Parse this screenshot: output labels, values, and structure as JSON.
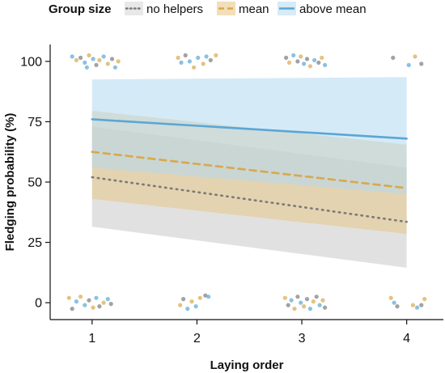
{
  "chart_data": {
    "type": "line",
    "legend": {
      "title": "Group size",
      "placement": "top",
      "entries": [
        {
          "key": "no_helpers",
          "label": "no helpers"
        },
        {
          "key": "mean",
          "label": "mean"
        },
        {
          "key": "above_mean",
          "label": "above mean"
        }
      ]
    },
    "xlabel": "Laying order",
    "ylabel": "Fledging probability (%)",
    "xlim": [
      0.6,
      4.35
    ],
    "ylim": [
      -7,
      107
    ],
    "xticks": [
      1,
      2,
      3,
      4
    ],
    "yticks": [
      0,
      25,
      50,
      75,
      100
    ],
    "grid": false,
    "series": [
      {
        "key": "no_helpers",
        "label": "no helpers",
        "color": "#7a7a7a",
        "band_color": "#c8c8c8",
        "linestyle": "dotted",
        "x": [
          1,
          4
        ],
        "y": [
          52,
          33.5
        ],
        "lower": [
          31.5,
          14.5
        ],
        "upper": [
          73,
          56
        ]
      },
      {
        "key": "mean",
        "label": "mean",
        "color": "#d9a84a",
        "band_color": "#e8c98a",
        "linestyle": "dashed",
        "x": [
          1,
          4
        ],
        "y": [
          62.5,
          47.5
        ],
        "lower": [
          43,
          28.5
        ],
        "upper": [
          79.5,
          65.5
        ]
      },
      {
        "key": "above_mean",
        "label": "above mean",
        "color": "#5aa6d6",
        "band_color": "#b3d9f0",
        "linestyle": "solid",
        "x": [
          1,
          4
        ],
        "y": [
          76,
          68
        ],
        "lower": [
          56,
          45
        ],
        "upper": [
          92.5,
          93.5
        ]
      }
    ],
    "jitter_points": [
      {
        "x": 0.81,
        "y": 102,
        "group": "above_mean"
      },
      {
        "x": 0.85,
        "y": 100.5,
        "group": "mean"
      },
      {
        "x": 0.89,
        "y": 101.5,
        "group": "no_helpers"
      },
      {
        "x": 0.93,
        "y": 99.5,
        "group": "above_mean"
      },
      {
        "x": 0.97,
        "y": 102.5,
        "group": "mean"
      },
      {
        "x": 1.01,
        "y": 101,
        "group": "above_mean"
      },
      {
        "x": 1.04,
        "y": 98.5,
        "group": "no_helpers"
      },
      {
        "x": 1.07,
        "y": 100.5,
        "group": "mean"
      },
      {
        "x": 1.11,
        "y": 102,
        "group": "above_mean"
      },
      {
        "x": 1.15,
        "y": 99,
        "group": "mean"
      },
      {
        "x": 1.19,
        "y": 101,
        "group": "no_helpers"
      },
      {
        "x": 1.22,
        "y": 97.5,
        "group": "above_mean"
      },
      {
        "x": 1.25,
        "y": 100,
        "group": "mean"
      },
      {
        "x": 0.95,
        "y": 97.5,
        "group": "above_mean"
      },
      {
        "x": 1.82,
        "y": 101.5,
        "group": "mean"
      },
      {
        "x": 1.85,
        "y": 99.5,
        "group": "above_mean"
      },
      {
        "x": 1.89,
        "y": 102.5,
        "group": "no_helpers"
      },
      {
        "x": 1.93,
        "y": 100,
        "group": "above_mean"
      },
      {
        "x": 1.97,
        "y": 97.5,
        "group": "mean"
      },
      {
        "x": 2.01,
        "y": 101.5,
        "group": "above_mean"
      },
      {
        "x": 2.06,
        "y": 99,
        "group": "mean"
      },
      {
        "x": 2.09,
        "y": 102,
        "group": "above_mean"
      },
      {
        "x": 2.13,
        "y": 100.5,
        "group": "no_helpers"
      },
      {
        "x": 2.18,
        "y": 102.5,
        "group": "mean"
      },
      {
        "x": 2.85,
        "y": 101.5,
        "group": "no_helpers"
      },
      {
        "x": 2.88,
        "y": 99.5,
        "group": "mean"
      },
      {
        "x": 2.92,
        "y": 102.5,
        "group": "above_mean"
      },
      {
        "x": 2.96,
        "y": 100,
        "group": "no_helpers"
      },
      {
        "x": 2.99,
        "y": 102,
        "group": "mean"
      },
      {
        "x": 3.02,
        "y": 99,
        "group": "above_mean"
      },
      {
        "x": 3.05,
        "y": 101,
        "group": "no_helpers"
      },
      {
        "x": 3.08,
        "y": 98,
        "group": "mean"
      },
      {
        "x": 3.12,
        "y": 100.5,
        "group": "above_mean"
      },
      {
        "x": 3.16,
        "y": 99.5,
        "group": "no_helpers"
      },
      {
        "x": 3.19,
        "y": 101.5,
        "group": "mean"
      },
      {
        "x": 3.22,
        "y": 98.5,
        "group": "above_mean"
      },
      {
        "x": 3.87,
        "y": 101.5,
        "group": "no_helpers"
      },
      {
        "x": 4.02,
        "y": 98.5,
        "group": "above_mean"
      },
      {
        "x": 4.08,
        "y": 102,
        "group": "mean"
      },
      {
        "x": 4.14,
        "y": 99,
        "group": "no_helpers"
      },
      {
        "x": 0.78,
        "y": 2,
        "group": "mean"
      },
      {
        "x": 0.81,
        "y": -2.5,
        "group": "no_helpers"
      },
      {
        "x": 0.85,
        "y": 0.5,
        "group": "above_mean"
      },
      {
        "x": 0.89,
        "y": 2.5,
        "group": "mean"
      },
      {
        "x": 0.93,
        "y": -1,
        "group": "above_mean"
      },
      {
        "x": 0.97,
        "y": 1,
        "group": "no_helpers"
      },
      {
        "x": 1.01,
        "y": -2,
        "group": "mean"
      },
      {
        "x": 1.04,
        "y": 2,
        "group": "above_mean"
      },
      {
        "x": 1.07,
        "y": -1.5,
        "group": "no_helpers"
      },
      {
        "x": 1.11,
        "y": 0,
        "group": "mean"
      },
      {
        "x": 1.15,
        "y": 1.5,
        "group": "above_mean"
      },
      {
        "x": 1.18,
        "y": -0.5,
        "group": "no_helpers"
      },
      {
        "x": 1.84,
        "y": -1,
        "group": "mean"
      },
      {
        "x": 1.87,
        "y": 1.5,
        "group": "no_helpers"
      },
      {
        "x": 1.91,
        "y": -2.5,
        "group": "above_mean"
      },
      {
        "x": 1.95,
        "y": 0.5,
        "group": "mean"
      },
      {
        "x": 1.99,
        "y": -1.5,
        "group": "above_mean"
      },
      {
        "x": 2.03,
        "y": 2,
        "group": "mean"
      },
      {
        "x": 2.08,
        "y": 3,
        "group": "no_helpers"
      },
      {
        "x": 2.11,
        "y": 2.5,
        "group": "above_mean"
      },
      {
        "x": 2.84,
        "y": 2,
        "group": "mean"
      },
      {
        "x": 2.87,
        "y": -1,
        "group": "no_helpers"
      },
      {
        "x": 2.9,
        "y": 1,
        "group": "above_mean"
      },
      {
        "x": 2.93,
        "y": -2.5,
        "group": "mean"
      },
      {
        "x": 2.96,
        "y": 2.5,
        "group": "no_helpers"
      },
      {
        "x": 2.99,
        "y": 0,
        "group": "above_mean"
      },
      {
        "x": 3.02,
        "y": -1.5,
        "group": "mean"
      },
      {
        "x": 3.05,
        "y": 1.5,
        "group": "no_helpers"
      },
      {
        "x": 3.08,
        "y": -2.5,
        "group": "above_mean"
      },
      {
        "x": 3.11,
        "y": 0.5,
        "group": "mean"
      },
      {
        "x": 3.14,
        "y": 2.5,
        "group": "no_helpers"
      },
      {
        "x": 3.17,
        "y": -1,
        "group": "above_mean"
      },
      {
        "x": 3.2,
        "y": 1,
        "group": "mean"
      },
      {
        "x": 3.22,
        "y": -2,
        "group": "no_helpers"
      },
      {
        "x": 3.85,
        "y": 2,
        "group": "mean"
      },
      {
        "x": 3.88,
        "y": 0,
        "group": "above_mean"
      },
      {
        "x": 3.91,
        "y": -1.5,
        "group": "no_helpers"
      },
      {
        "x": 4.06,
        "y": -1,
        "group": "mean"
      },
      {
        "x": 4.1,
        "y": -2,
        "group": "above_mean"
      },
      {
        "x": 4.14,
        "y": -1,
        "group": "no_helpers"
      },
      {
        "x": 4.17,
        "y": 1.5,
        "group": "mean"
      }
    ]
  }
}
